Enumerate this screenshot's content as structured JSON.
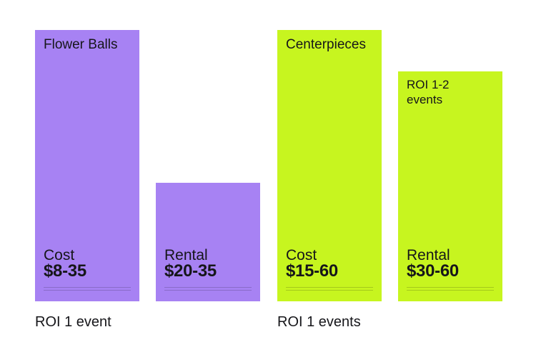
{
  "cards": [
    {
      "heading": "Flower Balls",
      "kind": "Cost",
      "price": "$8-35"
    },
    {
      "kind": "Rental",
      "price": "$20-35"
    },
    {
      "heading": "Centerpieces",
      "kind": "Cost",
      "price": "$15-60"
    },
    {
      "heading": "ROI 1-2 events",
      "kind": "Rental",
      "price": "$30-60"
    }
  ],
  "footers": [
    "ROI 1 event",
    "ROI 1 events"
  ]
}
